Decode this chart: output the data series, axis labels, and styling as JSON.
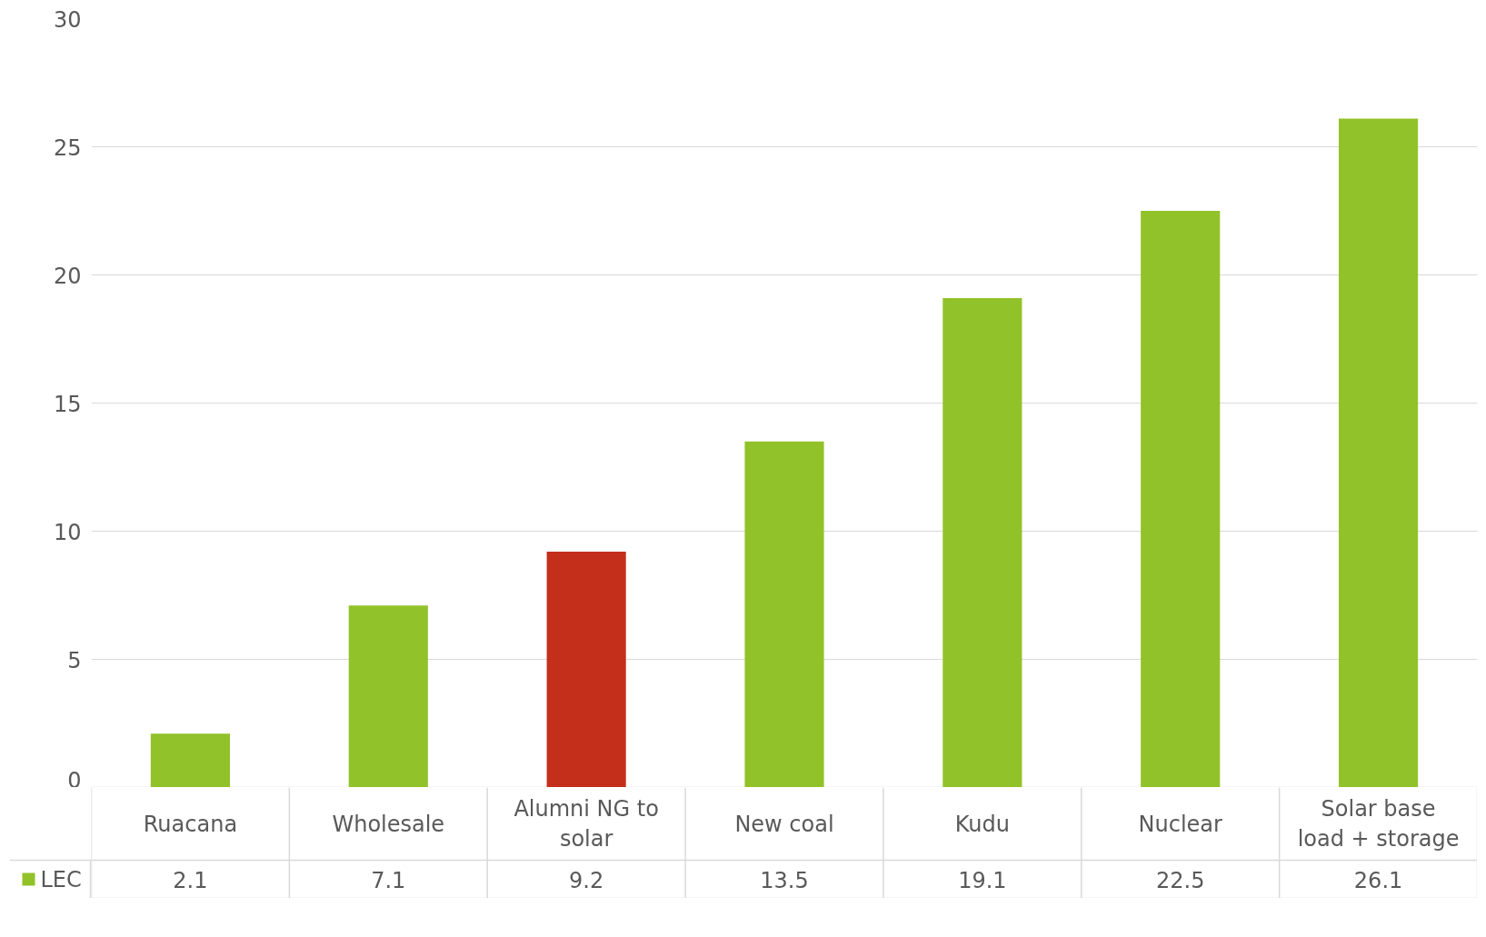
{
  "chart_data": {
    "type": "bar",
    "categories": [
      "Ruacana",
      "Wholesale",
      "Alumni NG to solar",
      "New coal",
      "Kudu",
      "Nuclear",
      "Solar base load + storage"
    ],
    "series": [
      {
        "name": "LEC",
        "color": "#92c229",
        "colors": [
          "#92c229",
          "#92c229",
          "#c42f1c",
          "#92c229",
          "#92c229",
          "#92c229",
          "#92c229"
        ],
        "values": [
          2.1,
          7.1,
          9.2,
          13.5,
          19.1,
          22.5,
          26.1
        ]
      }
    ],
    "ylim": [
      0,
      30
    ],
    "yticks": [
      0,
      5,
      10,
      15,
      20,
      25,
      30
    ],
    "grid": "y",
    "data_labels": true,
    "legend": "bottom left"
  }
}
